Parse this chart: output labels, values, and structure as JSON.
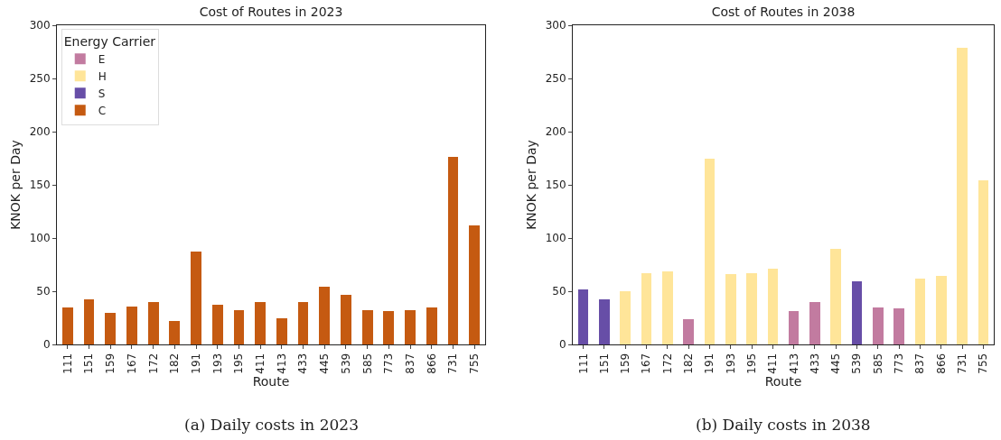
{
  "chart_data": [
    {
      "type": "bar",
      "title": "Cost of Routes in 2023",
      "xlabel": "Route",
      "ylabel": "KNOK per Day",
      "legend_title": "Energy Carrier",
      "legend": "top left",
      "stacked": true,
      "grid": false,
      "ylim": [
        0,
        300
      ],
      "yticks": [
        0,
        50,
        100,
        150,
        200,
        250,
        300
      ],
      "categories": [
        "111",
        "151",
        "159",
        "167",
        "172",
        "182",
        "191",
        "193",
        "195",
        "411",
        "413",
        "433",
        "445",
        "539",
        "585",
        "773",
        "837",
        "866",
        "731",
        "755"
      ],
      "series": [
        {
          "name": "E",
          "color": "#c27ba0",
          "values": [
            null,
            null,
            null,
            null,
            null,
            null,
            null,
            null,
            null,
            null,
            null,
            null,
            null,
            null,
            null,
            null,
            null,
            null,
            null,
            null
          ]
        },
        {
          "name": "H",
          "color": "#ffe599",
          "values": [
            null,
            null,
            null,
            null,
            null,
            null,
            null,
            null,
            null,
            null,
            null,
            null,
            null,
            null,
            null,
            null,
            null,
            null,
            null,
            null
          ]
        },
        {
          "name": "S",
          "color": "#674ea7",
          "values": [
            null,
            null,
            null,
            null,
            null,
            null,
            null,
            null,
            null,
            null,
            null,
            null,
            null,
            null,
            null,
            null,
            null,
            null,
            null,
            null
          ]
        },
        {
          "name": "C",
          "color": "#c55a11",
          "values": [
            35,
            42,
            30,
            36,
            40,
            22,
            87,
            37,
            32,
            40,
            25,
            40,
            54,
            47,
            32,
            31,
            32,
            35,
            176,
            112
          ]
        }
      ],
      "annotations": [
        "(a) Daily costs in 2023"
      ]
    },
    {
      "type": "bar",
      "title": "Cost of Routes in 2038",
      "xlabel": "Route",
      "ylabel": "KNOK per Day",
      "legend": false,
      "stacked": true,
      "grid": false,
      "ylim": [
        0,
        300
      ],
      "yticks": [
        0,
        50,
        100,
        150,
        200,
        250,
        300
      ],
      "categories": [
        "111",
        "151",
        "159",
        "167",
        "172",
        "182",
        "191",
        "193",
        "195",
        "411",
        "413",
        "433",
        "445",
        "539",
        "585",
        "773",
        "837",
        "866",
        "731",
        "755"
      ],
      "series": [
        {
          "color": "#c27ba0",
          "values": [
            null,
            null,
            null,
            null,
            null,
            24,
            null,
            null,
            null,
            null,
            31,
            40,
            null,
            null,
            35,
            34,
            null,
            null,
            null,
            null
          ]
        },
        {
          "color": "#ffe599",
          "values": [
            null,
            null,
            50,
            67,
            69,
            null,
            175,
            66,
            67,
            71,
            null,
            null,
            90,
            null,
            null,
            null,
            62,
            64,
            279,
            154
          ]
        },
        {
          "color": "#674ea7",
          "values": [
            52,
            42,
            null,
            null,
            null,
            null,
            null,
            null,
            null,
            null,
            null,
            null,
            null,
            59,
            null,
            null,
            null,
            null,
            null,
            null
          ]
        }
      ],
      "annotations": [
        "(b) Daily costs in 2038"
      ]
    }
  ]
}
